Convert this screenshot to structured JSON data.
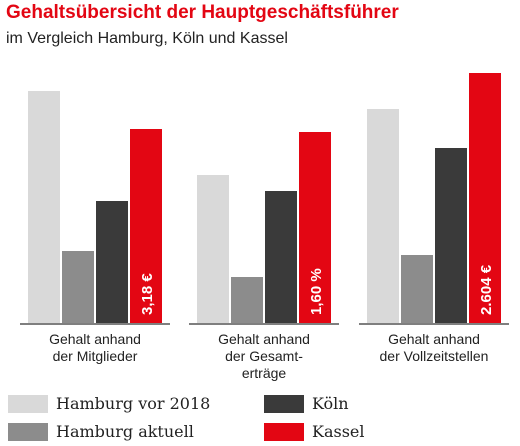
{
  "title": "Gehaltsübersicht der Hauptgeschäftsführer",
  "subtitle": "im Vergleich Hamburg, Köln und Kassel",
  "colors": {
    "hamburg_2018": "#d9d9d9",
    "hamburg_aktuell": "#8c8c8c",
    "koeln": "#3a3a3a",
    "kassel": "#e30613",
    "title": "#e30613"
  },
  "chart_data": {
    "type": "bar",
    "title": "Gehaltsübersicht der Hauptgeschäftsführer",
    "subtitle": "im Vergleich Hamburg, Köln und Kassel",
    "categories": [
      [
        "Gehalt anhand",
        "der Mitglieder"
      ],
      [
        "Gehalt anhand",
        "der Gesamt-",
        "erträge"
      ],
      [
        "Gehalt anhand",
        "der Vollzeitstellen"
      ]
    ],
    "series": [
      {
        "name": "Hamburg vor 2018",
        "color": "#d9d9d9",
        "values": [
          232,
          148,
          214
        ]
      },
      {
        "name": "Hamburg aktuell",
        "color": "#8c8c8c",
        "values": [
          72,
          46,
          68
        ]
      },
      {
        "name": "Köln",
        "color": "#3a3a3a",
        "values": [
          122,
          132,
          175
        ]
      },
      {
        "name": "Kassel",
        "color": "#e30613",
        "values": [
          194,
          191,
          250
        ]
      }
    ],
    "data_labels": [
      "3,18 €",
      "1,60 %",
      "2.604 €"
    ],
    "data_label_series": "Kassel",
    "ylim": [
      0,
      255
    ],
    "grid": false,
    "legend": "bottom",
    "xlabel": "",
    "ylabel": ""
  }
}
